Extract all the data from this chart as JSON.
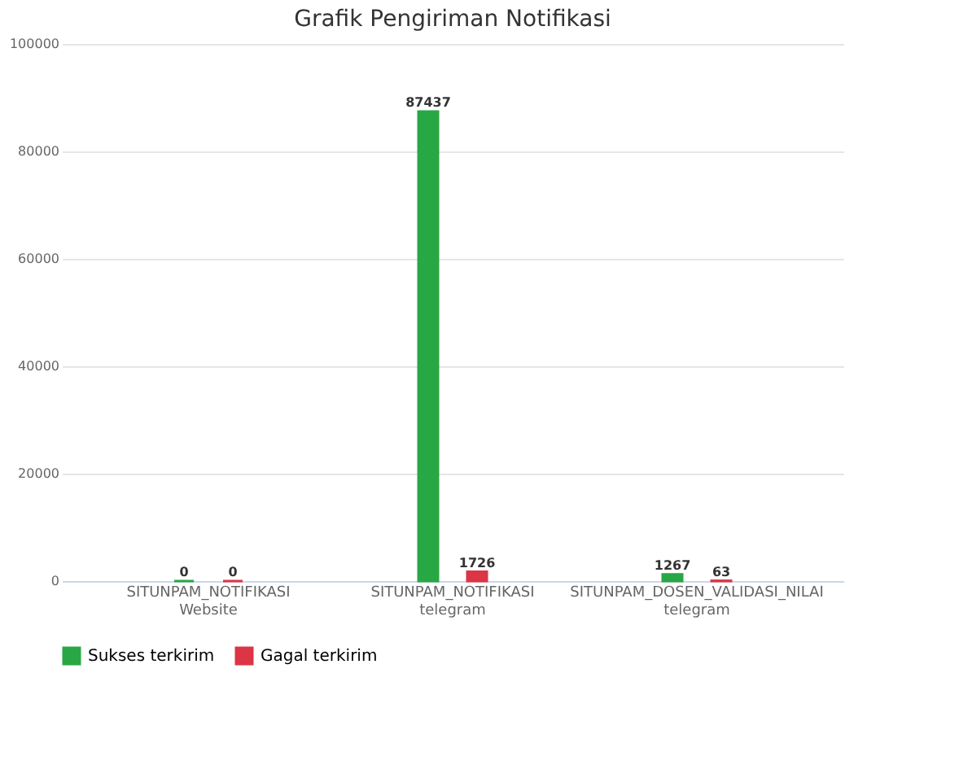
{
  "chart_data": {
    "type": "bar",
    "title": "Grafik Pengiriman Notifikasi",
    "categories": [
      "SITUNPAM_NOTIFIKASI\nWebsite",
      "SITUNPAM_NOTIFIKASI\ntelegram",
      "SITUNPAM_DOSEN_VALIDASI_NILAI\ntelegram"
    ],
    "series": [
      {
        "name": "Sukses terkirim",
        "color": "#28a745",
        "values": [
          0,
          87437,
          1267
        ]
      },
      {
        "name": "Gagal terkirim",
        "color": "#dc3545",
        "values": [
          0,
          1726,
          63
        ]
      }
    ],
    "ylim": [
      0,
      100000
    ],
    "yticks": [
      0,
      20000,
      40000,
      60000,
      80000,
      100000
    ],
    "grid": "y",
    "legend": "bottom",
    "data_labels": true
  }
}
